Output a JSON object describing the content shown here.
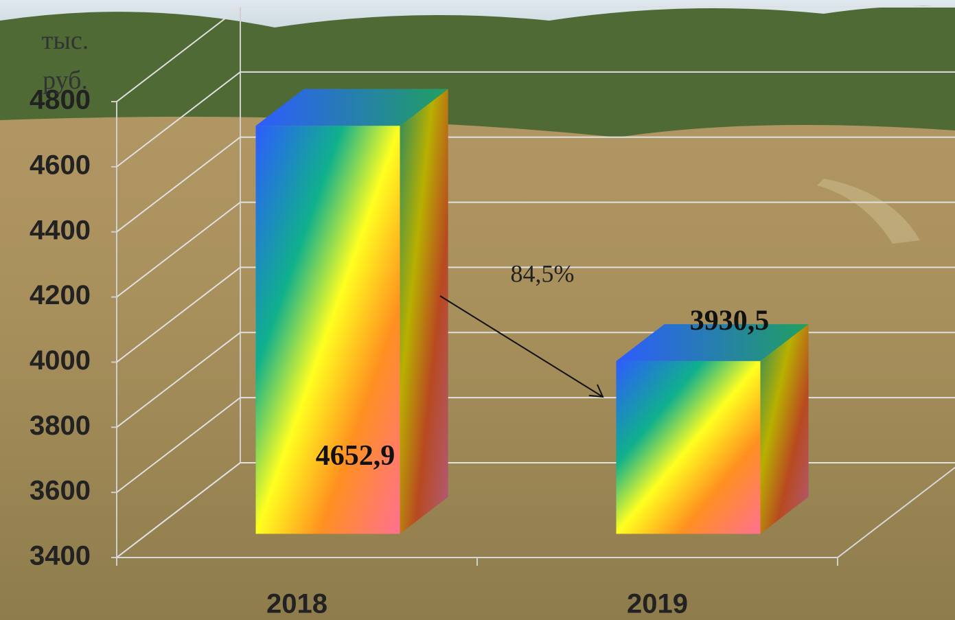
{
  "chart_data": {
    "type": "bar3d",
    "ylabel": "тыс. руб.",
    "categories": [
      "2018",
      "2019"
    ],
    "values": [
      4652.9,
      3930.5
    ],
    "value_labels": [
      "4652,9",
      "3930,5"
    ],
    "annotation": "84,5%",
    "ylim": [
      3400,
      4800
    ],
    "yticks": [
      3400,
      3600,
      3800,
      4000,
      4200,
      4400,
      4600,
      4800
    ],
    "grid": true
  }
}
